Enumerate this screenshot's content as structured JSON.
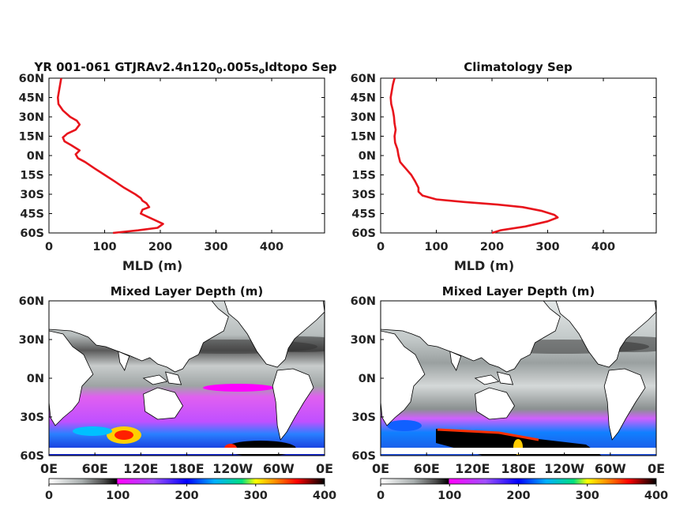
{
  "colors": {
    "profile_line": "#e8141c",
    "land": "#ffffff",
    "axis": "#000000"
  },
  "chart_data": [
    {
      "type": "line",
      "title_parts": [
        {
          "text": "YR 001-061 GTJRAv2.4n120",
          "sub": false
        },
        {
          "text": "0",
          "sub": true
        },
        {
          "text": ".005s",
          "sub": false
        },
        {
          "text": "o",
          "sub": true
        },
        {
          "text": "ldtopo Sep",
          "sub": false
        }
      ],
      "xlabel": "MLD (m)",
      "ylabel": "",
      "xlim": [
        0,
        495
      ],
      "ylim": [
        -60,
        60
      ],
      "xticks": [
        "0",
        "100",
        "200",
        "300",
        "400"
      ],
      "yticks": [
        "60N",
        "45N",
        "30N",
        "15N",
        "0N",
        "15S",
        "30S",
        "45S",
        "60S"
      ],
      "grid": false,
      "series": [
        {
          "color": "#e8141c",
          "points": [
            [
              22,
              60
            ],
            [
              20,
              55
            ],
            [
              18,
              50
            ],
            [
              16,
              45
            ],
            [
              17,
              40
            ],
            [
              25,
              35
            ],
            [
              38,
              30
            ],
            [
              50,
              27
            ],
            [
              55,
              24
            ],
            [
              48,
              20
            ],
            [
              33,
              17
            ],
            [
              25,
              14
            ],
            [
              28,
              11
            ],
            [
              40,
              8
            ],
            [
              55,
              4
            ],
            [
              48,
              1
            ],
            [
              52,
              -2
            ],
            [
              65,
              -5
            ],
            [
              82,
              -10
            ],
            [
              100,
              -15
            ],
            [
              118,
              -20
            ],
            [
              135,
              -25
            ],
            [
              155,
              -30
            ],
            [
              165,
              -33
            ],
            [
              168,
              -35
            ],
            [
              175,
              -37
            ],
            [
              180,
              -40
            ],
            [
              168,
              -42
            ],
            [
              165,
              -45
            ],
            [
              175,
              -47
            ],
            [
              190,
              -50
            ],
            [
              205,
              -53
            ],
            [
              195,
              -56
            ],
            [
              160,
              -58
            ],
            [
              115,
              -60
            ]
          ]
        }
      ]
    },
    {
      "type": "line",
      "title": "Climatology Sep",
      "xlabel": "MLD (m)",
      "ylabel": "",
      "xlim": [
        0,
        495
      ],
      "ylim": [
        -60,
        60
      ],
      "xticks": [
        "0",
        "100",
        "200",
        "300",
        "400"
      ],
      "yticks": [
        "60N",
        "45N",
        "30N",
        "15N",
        "0N",
        "15S",
        "30S",
        "45S",
        "60S"
      ],
      "grid": false,
      "series": [
        {
          "color": "#e8141c",
          "points": [
            [
              25,
              60
            ],
            [
              22,
              55
            ],
            [
              20,
              50
            ],
            [
              18,
              45
            ],
            [
              19,
              40
            ],
            [
              22,
              35
            ],
            [
              24,
              30
            ],
            [
              25,
              25
            ],
            [
              27,
              20
            ],
            [
              25,
              15
            ],
            [
              26,
              10
            ],
            [
              30,
              5
            ],
            [
              32,
              0
            ],
            [
              35,
              -5
            ],
            [
              45,
              -10
            ],
            [
              55,
              -15
            ],
            [
              62,
              -20
            ],
            [
              68,
              -25
            ],
            [
              68,
              -28
            ],
            [
              75,
              -31
            ],
            [
              100,
              -34
            ],
            [
              150,
              -36
            ],
            [
              210,
              -38
            ],
            [
              255,
              -40
            ],
            [
              290,
              -43
            ],
            [
              312,
              -46
            ],
            [
              318,
              -48
            ],
            [
              300,
              -51
            ],
            [
              260,
              -55
            ],
            [
              215,
              -58
            ],
            [
              200,
              -60
            ]
          ]
        }
      ]
    },
    {
      "type": "heatmap",
      "title": "Mixed Layer Depth (m)",
      "xticks": [
        "0E",
        "60E",
        "120E",
        "180E",
        "120W",
        "60W",
        "0E"
      ],
      "yticks": [
        "60N",
        "30N",
        "0N",
        "30S",
        "60S"
      ],
      "colorbar": {
        "ticks": [
          "0",
          "100",
          "200",
          "300",
          "400"
        ],
        "range": [
          0,
          400
        ]
      },
      "colormap_stops": [
        "#ffffff",
        "#9aa0a0",
        "#454545",
        "#000000",
        "#ff00ff",
        "#a050ff",
        "#0000ff",
        "#00b0ff",
        "#00e080",
        "#ffff00",
        "#ff8000",
        "#ff0000",
        "#600000",
        "#000000"
      ]
    },
    {
      "type": "heatmap",
      "title": "Mixed Layer Depth (m)",
      "xticks": [
        "0E",
        "60E",
        "120E",
        "180E",
        "120W",
        "60W",
        "0E"
      ],
      "yticks": [
        "60N",
        "30N",
        "0N",
        "30S",
        "60S"
      ],
      "colorbar": {
        "ticks": [
          "0",
          "100",
          "200",
          "300",
          "400"
        ],
        "range": [
          0,
          400
        ]
      },
      "colormap_stops": [
        "#ffffff",
        "#9aa0a0",
        "#454545",
        "#000000",
        "#ff00ff",
        "#a050ff",
        "#0000ff",
        "#00b0ff",
        "#00e080",
        "#ffff00",
        "#ff8000",
        "#ff0000",
        "#600000",
        "#000000"
      ]
    }
  ]
}
